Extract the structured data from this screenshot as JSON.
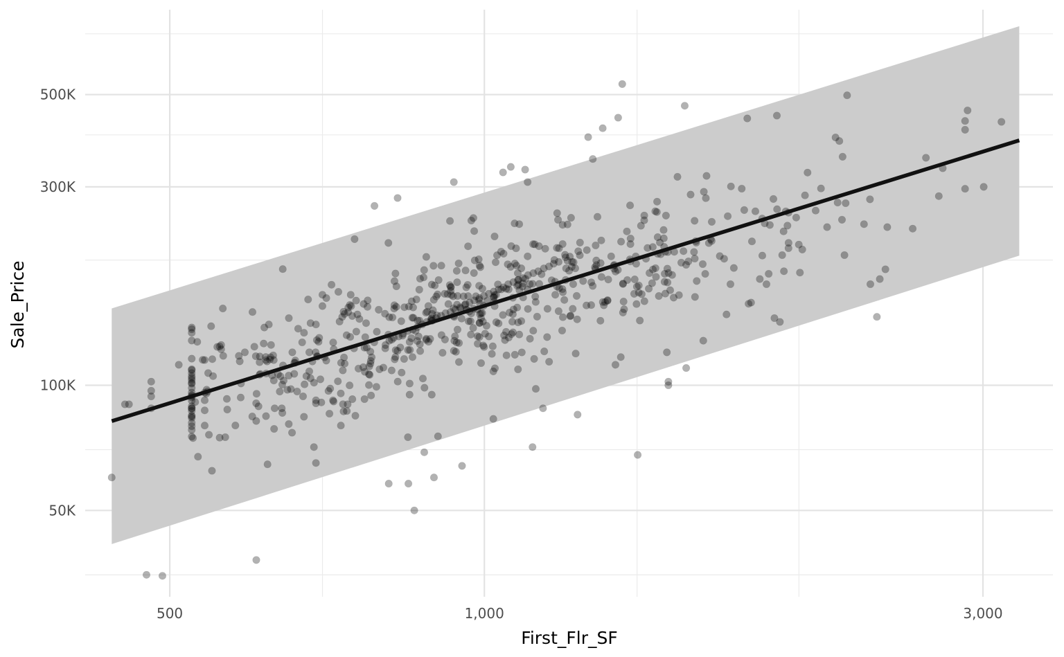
{
  "chart_data": {
    "type": "scatter",
    "xlabel": "First_Flr_SF",
    "ylabel": "Sale_Price",
    "x_scale": "log10",
    "y_scale": "log10",
    "xlim": [
      415,
      3500
    ],
    "ylim": [
      31000,
      800000
    ],
    "x_major_ticks": [
      500,
      1000,
      3000
    ],
    "x_tick_labels": [
      "500",
      "1,000",
      "3,000"
    ],
    "x_minor_ticks": [
      700,
      1400,
      2000
    ],
    "y_major_ticks": [
      50000,
      100000,
      300000,
      500000
    ],
    "y_tick_labels": [
      "50K",
      "100K",
      "300K",
      "500K"
    ],
    "y_minor_ticks": [
      35000,
      70000,
      200000,
      400000,
      700000
    ],
    "grid": true,
    "point_color": "#000000",
    "point_alpha": 0.3,
    "regression_line": {
      "color": "#111111",
      "start": {
        "x": 440,
        "y": 82000
      },
      "end": {
        "x": 3250,
        "y": 388000
      }
    },
    "prediction_band": {
      "color": "#cccccc",
      "start": {
        "x": 440,
        "lower": 41500,
        "upper": 153000
      },
      "end": {
        "x": 3250,
        "lower": 205000,
        "upper": 730000
      }
    },
    "point_count": 750,
    "points": [
      [
        440,
        60000
      ],
      [
        475,
        35000
      ],
      [
        492,
        34800
      ],
      [
        453,
        90000
      ],
      [
        457,
        90000
      ],
      [
        480,
        102000
      ],
      [
        480,
        97000
      ],
      [
        480,
        94000
      ],
      [
        480,
        88000
      ],
      [
        510,
        112000
      ],
      [
        540,
        115000
      ],
      [
        540,
        96000
      ],
      [
        540,
        92000
      ],
      [
        540,
        87000
      ],
      [
        540,
        80000
      ],
      [
        560,
        125000
      ],
      [
        560,
        122000
      ],
      [
        565,
        75000
      ],
      [
        585,
        101000
      ],
      [
        590,
        120000
      ],
      [
        600,
        150000
      ],
      [
        605,
        38000
      ],
      [
        608,
        89000
      ],
      [
        615,
        126000
      ],
      [
        618,
        115000
      ],
      [
        622,
        140000
      ],
      [
        625,
        125000
      ],
      [
        628,
        118000
      ],
      [
        630,
        88000
      ],
      [
        640,
        88000
      ],
      [
        650,
        145000
      ],
      [
        655,
        120000
      ],
      [
        672,
        84000
      ],
      [
        680,
        120000
      ],
      [
        687,
        71000
      ],
      [
        690,
        65000
      ],
      [
        690,
        92000
      ],
      [
        690,
        140000
      ],
      [
        695,
        130000
      ],
      [
        700,
        165000
      ],
      [
        700,
        155000
      ],
      [
        706,
        162000
      ],
      [
        740,
        90000
      ],
      [
        756,
        148000
      ],
      [
        785,
        270000
      ],
      [
        810,
        58000
      ],
      [
        826,
        282000
      ],
      [
        845,
        75000
      ],
      [
        846,
        58000
      ],
      [
        857,
        50000
      ],
      [
        876,
        69000
      ],
      [
        895,
        60000
      ],
      [
        935,
        308000
      ],
      [
        952,
        64000
      ],
      [
        1020,
        83000
      ],
      [
        1042,
        325000
      ],
      [
        1060,
        335000
      ],
      [
        1094,
        330000
      ],
      [
        1100,
        308000
      ],
      [
        1112,
        71000
      ],
      [
        1138,
        88000
      ],
      [
        1228,
        85000
      ],
      [
        1257,
        395000
      ],
      [
        1270,
        350000
      ],
      [
        1298,
        415000
      ],
      [
        1343,
        440000
      ],
      [
        1355,
        530000
      ],
      [
        1402,
        68000
      ],
      [
        1495,
        120000
      ],
      [
        1500,
        100000
      ],
      [
        1555,
        470000
      ],
      [
        1785,
        438000
      ],
      [
        1817,
        262000
      ],
      [
        1855,
        245000
      ],
      [
        1862,
        175000
      ],
      [
        1905,
        445000
      ],
      [
        2128,
        240000
      ],
      [
        2224,
        498000
      ],
      [
        2339,
        280000
      ],
      [
        2430,
        240000
      ],
      [
        2570,
        238000
      ],
      [
        2722,
        285000
      ],
      [
        2900,
        458000
      ],
      [
        3005,
        300000
      ],
      [
        3125,
        430000
      ],
      [
        1050,
        118000
      ],
      [
        910,
        132000
      ],
      [
        1010,
        131000
      ],
      [
        1055,
        170000
      ],
      [
        1065,
        134000
      ],
      [
        1069,
        245000
      ],
      [
        1080,
        244000
      ],
      [
        1100,
        170000
      ],
      [
        935,
        121000
      ],
      [
        745,
        165000
      ],
      [
        680,
        108000
      ],
      [
        1020,
        108000
      ],
      [
        1120,
        98000
      ],
      [
        1335,
        112000
      ],
      [
        1500,
        102000
      ],
      [
        1560,
        110000
      ],
      [
        1620,
        128000
      ],
      [
        1705,
        148000
      ],
      [
        1720,
        175000
      ],
      [
        1790,
        157000
      ],
      [
        1800,
        158000
      ],
      [
        1835,
        180000
      ],
      [
        1845,
        205000
      ],
      [
        1895,
        145000
      ],
      [
        1918,
        142000
      ],
      [
        1935,
        188000
      ],
      [
        1950,
        242000
      ],
      [
        1955,
        220000
      ],
      [
        2015,
        212000
      ],
      [
        2075,
        263000
      ],
      [
        2178,
        275000
      ],
      [
        2199,
        250000
      ],
      [
        2217,
        274000
      ],
      [
        2341,
        175000
      ],
      [
        2375,
        146000
      ],
      [
        2390,
        180000
      ],
      [
        2420,
        190000
      ],
      [
        1230,
        210000
      ],
      [
        1196,
        203000
      ],
      [
        1178,
        198000
      ],
      [
        1165,
        196000
      ],
      [
        1153,
        193000
      ],
      [
        1140,
        191000
      ],
      [
        1126,
        188000
      ],
      [
        1114,
        186000
      ],
      [
        1101,
        184000
      ],
      [
        1089,
        181000
      ],
      [
        1077,
        179000
      ],
      [
        1066,
        177000
      ],
      [
        1054,
        175000
      ],
      [
        1043,
        172000
      ],
      [
        1032,
        170000
      ],
      [
        1021,
        168000
      ],
      [
        1010,
        166000
      ],
      [
        999,
        164000
      ],
      [
        989,
        162000
      ],
      [
        978,
        160000
      ],
      [
        968,
        158000
      ],
      [
        958,
        156000
      ],
      [
        948,
        154000
      ],
      [
        938,
        152000
      ],
      [
        928,
        150000
      ],
      [
        918,
        149000
      ],
      [
        909,
        147000
      ],
      [
        899,
        145000
      ],
      [
        890,
        143000
      ],
      [
        881,
        142000
      ],
      [
        872,
        140000
      ],
      [
        863,
        138000
      ],
      [
        854,
        136000
      ],
      [
        845,
        135000
      ],
      [
        836,
        133000
      ],
      [
        828,
        131000
      ],
      [
        819,
        130000
      ],
      [
        811,
        128000
      ]
    ]
  }
}
